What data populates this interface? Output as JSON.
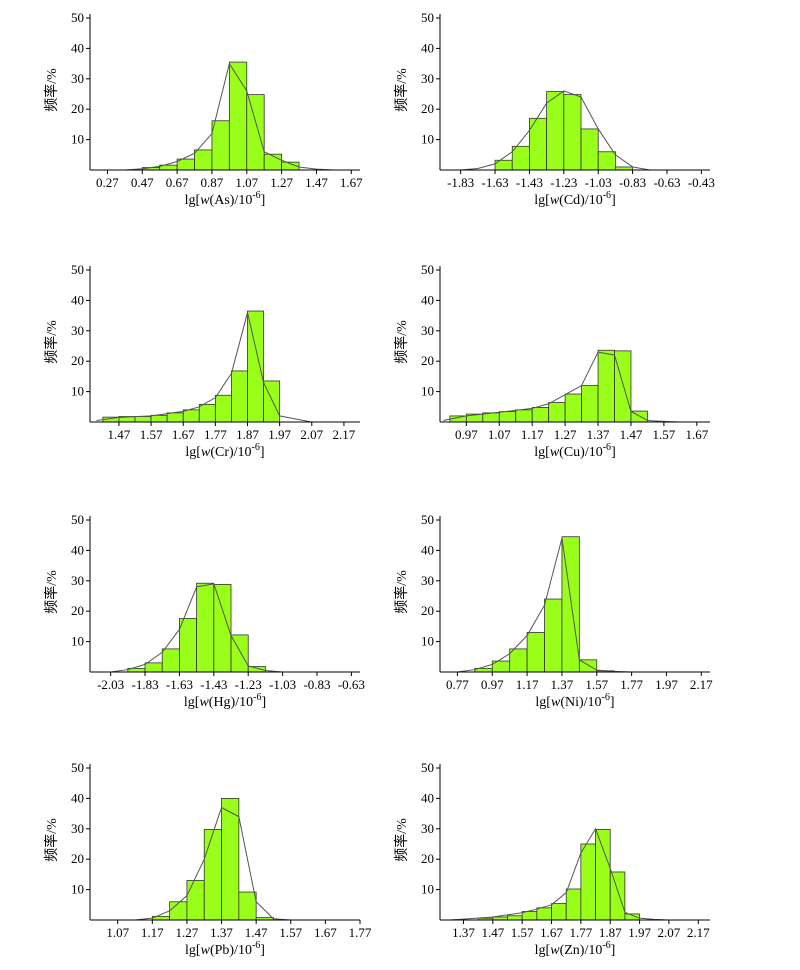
{
  "chart_data": [
    {
      "type": "bar",
      "ylabel": "频率/%",
      "xlabel": {
        "pre": "lg[",
        "var": "w",
        "mid": "(As)/10",
        "sup": "-6",
        "post": "]"
      },
      "ylim": [
        0,
        50
      ],
      "y_ticks": [
        10,
        20,
        30,
        40,
        50
      ],
      "xlim": [
        0.17,
        1.72
      ],
      "x_ticks": [
        0.27,
        0.47,
        0.67,
        0.87,
        1.07,
        1.27,
        1.47,
        1.67
      ],
      "x_tick_labels": [
        "0.27",
        "0.47",
        "0.67",
        "0.87",
        "1.07",
        "1.27",
        "1.47",
        "1.67"
      ],
      "bin_width": 0.1,
      "bins": [
        0.47,
        0.57,
        0.67,
        0.77,
        0.87,
        0.97,
        1.07,
        1.17,
        1.27
      ],
      "values": [
        0.8,
        1.6,
        3.6,
        6.6,
        16.2,
        35.5,
        24.8,
        5.2,
        2.6
      ],
      "line_x": [
        0.37,
        0.47,
        0.57,
        0.67,
        0.77,
        0.87,
        0.97,
        1.07,
        1.17,
        1.27,
        1.37,
        1.47,
        1.57
      ],
      "line_y": [
        0,
        0.4,
        1.2,
        2.8,
        5.5,
        12,
        35,
        26,
        6,
        3.2,
        1,
        0.3,
        0
      ],
      "bar_color": "#99ff1a",
      "line_color": "#555555"
    },
    {
      "type": "bar",
      "ylabel": "频率/%",
      "xlabel": {
        "pre": "lg[",
        "var": "w",
        "mid": "(Cd)/10",
        "sup": "-6",
        "post": "]"
      },
      "ylim": [
        0,
        50
      ],
      "y_ticks": [
        10,
        20,
        30,
        40,
        50
      ],
      "xlim": [
        -1.95,
        -0.38
      ],
      "x_ticks": [
        -1.83,
        -1.63,
        -1.43,
        -1.23,
        -1.03,
        -0.83,
        -0.63,
        -0.43
      ],
      "x_tick_labels": [
        "-1.83",
        "-1.63",
        "-1.43",
        "-1.23",
        "-1.03",
        "-0.83",
        "-0.63",
        "-0.43"
      ],
      "bin_width": 0.1,
      "bins": [
        -1.63,
        -1.53,
        -1.43,
        -1.33,
        -1.23,
        -1.13,
        -1.03,
        -0.93
      ],
      "values": [
        3.2,
        7.8,
        17.0,
        25.8,
        24.8,
        13.5,
        6.0,
        1.0
      ],
      "line_x": [
        -1.83,
        -1.73,
        -1.63,
        -1.53,
        -1.43,
        -1.33,
        -1.23,
        -1.13,
        -1.03,
        -0.93,
        -0.83,
        -0.73
      ],
      "line_y": [
        0,
        0.5,
        2,
        6,
        13,
        22,
        26,
        24,
        13.5,
        5,
        1,
        0
      ],
      "bar_color": "#99ff1a",
      "line_color": "#555555"
    },
    {
      "type": "bar",
      "ylabel": "频率/%",
      "xlabel": {
        "pre": "lg[",
        "var": "w",
        "mid": "(Cr)/10",
        "sup": "-6",
        "post": "]"
      },
      "ylim": [
        0,
        50
      ],
      "y_ticks": [
        10,
        20,
        30,
        40,
        50
      ],
      "xlim": [
        1.38,
        2.22
      ],
      "x_ticks": [
        1.47,
        1.57,
        1.67,
        1.77,
        1.87,
        1.97,
        2.07,
        2.17
      ],
      "x_tick_labels": [
        "1.47",
        "1.57",
        "1.67",
        "1.77",
        "1.87",
        "1.97",
        "2.07",
        "2.17"
      ],
      "bin_width": 0.05,
      "bins": [
        1.42,
        1.47,
        1.52,
        1.57,
        1.62,
        1.67,
        1.72,
        1.77,
        1.82,
        1.87,
        1.92
      ],
      "values": [
        1.6,
        1.8,
        1.8,
        2.2,
        3.0,
        4.0,
        5.8,
        8.8,
        16.8,
        36.5,
        13.5
      ],
      "line_x": [
        1.4,
        1.47,
        1.57,
        1.67,
        1.72,
        1.77,
        1.82,
        1.87,
        1.92,
        1.97,
        2.02,
        2.07
      ],
      "line_y": [
        0.5,
        1.5,
        2,
        3.5,
        5,
        8,
        16,
        36,
        13,
        2,
        1,
        0
      ],
      "bar_color": "#99ff1a",
      "line_color": "#555555"
    },
    {
      "type": "bar",
      "ylabel": "频率/%",
      "xlabel": {
        "pre": "lg[",
        "var": "w",
        "mid": "(Cu)/10",
        "sup": "-6",
        "post": "]"
      },
      "ylim": [
        0,
        50
      ],
      "y_ticks": [
        10,
        20,
        30,
        40,
        50
      ],
      "xlim": [
        0.89,
        1.71
      ],
      "x_ticks": [
        0.97,
        1.07,
        1.17,
        1.27,
        1.37,
        1.47,
        1.57,
        1.67
      ],
      "x_tick_labels": [
        "0.97",
        "1.07",
        "1.17",
        "1.27",
        "1.37",
        "1.47",
        "1.57",
        "1.67"
      ],
      "bin_width": 0.05,
      "bins": [
        0.92,
        0.97,
        1.02,
        1.07,
        1.12,
        1.17,
        1.22,
        1.27,
        1.32,
        1.37,
        1.42,
        1.47
      ],
      "values": [
        2.0,
        2.6,
        3.0,
        3.4,
        4.0,
        4.8,
        6.4,
        9.2,
        12.0,
        23.6,
        23.4,
        3.6
      ],
      "line_x": [
        0.9,
        0.97,
        1.07,
        1.17,
        1.22,
        1.27,
        1.32,
        1.37,
        1.42,
        1.47,
        1.52,
        1.57,
        1.62
      ],
      "line_y": [
        0.5,
        2,
        3.2,
        4.5,
        6,
        9,
        12,
        23,
        22,
        3.5,
        0.5,
        0.2,
        0
      ],
      "bar_color": "#99ff1a",
      "line_color": "#555555"
    },
    {
      "type": "bar",
      "ylabel": "频率/%",
      "xlabel": {
        "pre": "lg[",
        "var": "w",
        "mid": "(Hg)/10",
        "sup": "-6",
        "post": "]"
      },
      "ylim": [
        0,
        50
      ],
      "y_ticks": [
        10,
        20,
        30,
        40,
        50
      ],
      "xlim": [
        -2.15,
        -0.58
      ],
      "x_ticks": [
        -2.03,
        -1.83,
        -1.63,
        -1.43,
        -1.23,
        -1.03,
        -0.83,
        -0.63
      ],
      "x_tick_labels": [
        "-2.03",
        "-1.83",
        "-1.63",
        "-1.43",
        "-1.23",
        "-1.03",
        "-0.83",
        "-0.63"
      ],
      "bin_width": 0.1,
      "bins": [
        -1.93,
        -1.83,
        -1.73,
        -1.63,
        -1.53,
        -1.43,
        -1.33,
        -1.23
      ],
      "values": [
        1.2,
        3.0,
        7.6,
        17.6,
        29.2,
        28.8,
        12.2,
        1.8
      ],
      "line_x": [
        -2.03,
        -1.93,
        -1.83,
        -1.73,
        -1.63,
        -1.53,
        -1.43,
        -1.33,
        -1.23,
        -1.13,
        -1.03
      ],
      "line_y": [
        0,
        0.8,
        2.5,
        6.5,
        14,
        28,
        29,
        12,
        2,
        0.5,
        0
      ],
      "bar_color": "#99ff1a",
      "line_color": "#555555"
    },
    {
      "type": "bar",
      "ylabel": "频率/%",
      "xlabel": {
        "pre": "lg[",
        "var": "w",
        "mid": "(Ni)/10",
        "sup": "-6",
        "post": "]"
      },
      "ylim": [
        0,
        50
      ],
      "y_ticks": [
        10,
        20,
        30,
        40,
        50
      ],
      "xlim": [
        0.67,
        2.22
      ],
      "x_ticks": [
        0.77,
        0.97,
        1.17,
        1.37,
        1.57,
        1.77,
        1.97,
        2.17
      ],
      "x_tick_labels": [
        "0.77",
        "0.97",
        "1.17",
        "1.37",
        "1.57",
        "1.77",
        "1.97",
        "2.17"
      ],
      "bin_width": 0.1,
      "bins": [
        0.87,
        0.97,
        1.07,
        1.17,
        1.27,
        1.37,
        1.47,
        1.57
      ],
      "values": [
        1.2,
        3.6,
        7.6,
        13.0,
        24.0,
        44.5,
        4.0,
        0.4
      ],
      "line_x": [
        0.77,
        0.87,
        0.97,
        1.07,
        1.17,
        1.27,
        1.37,
        1.47,
        1.57,
        1.67,
        1.77
      ],
      "line_y": [
        0,
        0.8,
        2.5,
        6,
        12,
        22,
        44,
        4,
        0.6,
        0.2,
        0
      ],
      "bar_color": "#99ff1a",
      "line_color": "#555555"
    },
    {
      "type": "bar",
      "ylabel": "频率/%",
      "xlabel": {
        "pre": "lg[",
        "var": "w",
        "mid": "(Pb)/10",
        "sup": "-6",
        "post": "]"
      },
      "ylim": [
        0,
        50
      ],
      "y_ticks": [
        10,
        20,
        30,
        40,
        50
      ],
      "xlim": [
        0.99,
        1.77
      ],
      "x_ticks": [
        1.07,
        1.17,
        1.27,
        1.37,
        1.47,
        1.57,
        1.67,
        1.77
      ],
      "x_tick_labels": [
        "1.07",
        "1.17",
        "1.27",
        "1.37",
        "1.47",
        "1.57",
        "1.67",
        "1.77"
      ],
      "bin_width": 0.05,
      "bins": [
        1.17,
        1.22,
        1.27,
        1.32,
        1.37,
        1.42,
        1.47
      ],
      "values": [
        1.2,
        6.0,
        13.0,
        29.8,
        40.0,
        9.2,
        0.8
      ],
      "line_x": [
        1.12,
        1.17,
        1.22,
        1.27,
        1.32,
        1.37,
        1.42,
        1.47,
        1.52,
        1.57
      ],
      "line_y": [
        0,
        0.6,
        3,
        8,
        20,
        37,
        34,
        6,
        0.4,
        0
      ],
      "bar_color": "#99ff1a",
      "line_color": "#555555"
    },
    {
      "type": "bar",
      "ylabel": "频率/%",
      "xlabel": {
        "pre": "lg[",
        "var": "w",
        "mid": "(Zn)/10",
        "sup": "-6",
        "post": "]"
      },
      "ylim": [
        0,
        50
      ],
      "y_ticks": [
        10,
        20,
        30,
        40,
        50
      ],
      "xlim": [
        1.29,
        2.21
      ],
      "x_ticks": [
        1.37,
        1.47,
        1.57,
        1.67,
        1.77,
        1.87,
        1.97,
        2.07,
        2.17
      ],
      "x_tick_labels": [
        "1.37",
        "1.47",
        "1.57",
        "1.67",
        "1.77",
        "1.87",
        "1.97",
        "2.07",
        "2.17"
      ],
      "bin_width": 0.05,
      "bins": [
        1.42,
        1.47,
        1.52,
        1.57,
        1.62,
        1.67,
        1.72,
        1.77,
        1.82,
        1.87,
        1.92
      ],
      "values": [
        0.6,
        1.0,
        1.4,
        2.8,
        4.0,
        5.4,
        10.2,
        25.0,
        29.8,
        15.8,
        2.0
      ],
      "line_x": [
        1.32,
        1.37,
        1.47,
        1.57,
        1.62,
        1.67,
        1.72,
        1.77,
        1.82,
        1.87,
        1.92,
        1.97,
        2.02,
        2.07
      ],
      "line_y": [
        0,
        0.3,
        1,
        2.4,
        3.6,
        5,
        9,
        22,
        30,
        17,
        2.5,
        0.6,
        0.2,
        0
      ],
      "bar_color": "#99ff1a",
      "line_color": "#555555"
    }
  ]
}
